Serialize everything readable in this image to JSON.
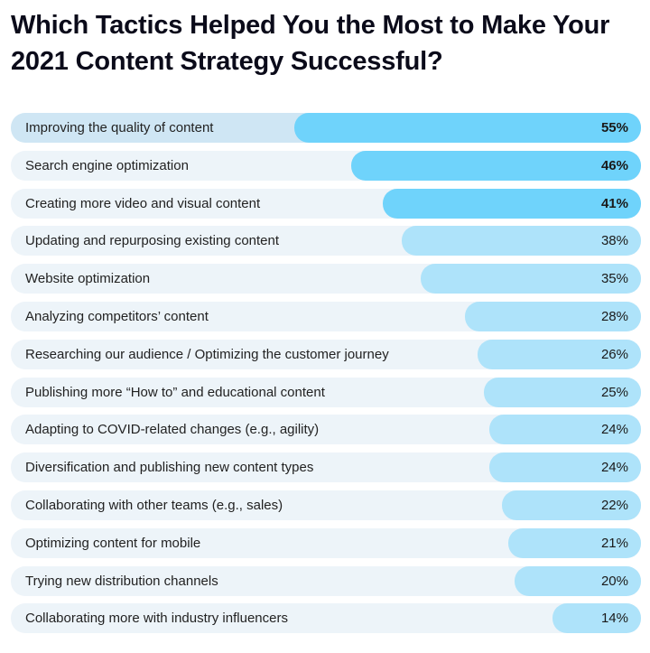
{
  "chart_data": {
    "type": "bar",
    "orientation": "horizontal",
    "title": "Which Tactics Helped You the Most to Make Your 2021 Content Strategy Successful?",
    "categories": [
      "Improving the quality of content",
      "Search engine optimization",
      "Creating more video and visual content",
      "Updating and repurposing existing content",
      "Website optimization",
      "Analyzing competitors’ content",
      "Researching our audience / Optimizing the customer journey",
      "Publishing more “How to” and educational content",
      "Adapting to COVID-related changes (e.g., agility)",
      "Diversification and publishing new content types",
      "Collaborating with other teams (e.g., sales)",
      "Optimizing content for mobile",
      "Trying new distribution channels",
      "Collaborating more with industry influencers"
    ],
    "values": [
      55,
      46,
      41,
      38,
      35,
      28,
      26,
      25,
      24,
      24,
      22,
      21,
      20,
      14
    ],
    "value_labels": [
      "55%",
      "46%",
      "41%",
      "38%",
      "35%",
      "28%",
      "26%",
      "25%",
      "24%",
      "24%",
      "22%",
      "21%",
      "20%",
      "14%"
    ],
    "xlim": [
      0,
      100
    ],
    "grid": false,
    "legend": "none",
    "colors": {
      "bar_strong": "#6fd3fb",
      "bar_light": "#aee3fa",
      "track": "#edf4f9",
      "track_highlight": "#cfe6f4"
    }
  }
}
